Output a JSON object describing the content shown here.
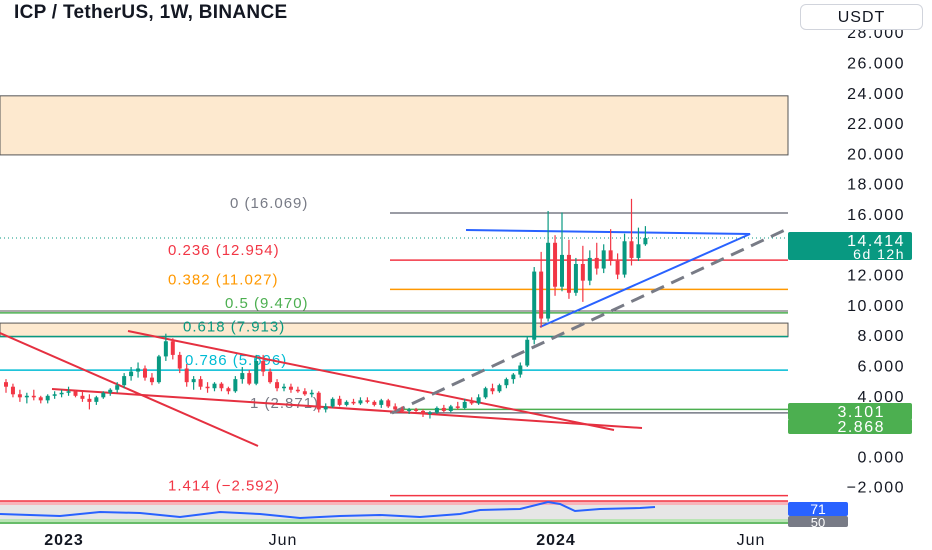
{
  "header": {
    "title": "ICP / TetherUS, 1W, BINANCE",
    "currency": "USDT"
  },
  "price_axis": {
    "ticks": [
      "28.000",
      "26.000",
      "24.000",
      "22.000",
      "20.000",
      "18.000",
      "16.000",
      "12.000",
      "10.000",
      "8.000",
      "6.000",
      "4.000",
      "0.000",
      "−2.000"
    ],
    "tick_values": [
      28,
      26,
      24,
      22,
      20,
      18,
      16,
      12,
      10,
      8,
      6,
      4,
      0,
      -2
    ]
  },
  "time_axis": {
    "labels": [
      "2023",
      "Jun",
      "2024",
      "Jun"
    ],
    "bold": [
      true,
      false,
      true,
      false
    ]
  },
  "badges": {
    "last_price": "14.414",
    "countdown": "6d 12h",
    "level_a": "3.101",
    "level_b": "2.868",
    "rsi_value": "71",
    "rsi_ref": "50"
  },
  "fib_levels": [
    {
      "label": "0 (16.069)",
      "price": 16.069,
      "color": "#787b86"
    },
    {
      "label": "0.236 (12.954)",
      "price": 12.954,
      "color": "#f23645"
    },
    {
      "label": "0.382 (11.027)",
      "price": 11.027,
      "color": "#ff9800"
    },
    {
      "label": "0.5 (9.470)",
      "price": 9.47,
      "color": "#4caf50"
    },
    {
      "label": "0.618 (7.913)",
      "price": 7.913,
      "color": "#089981"
    },
    {
      "label": "0.786 (5.696)",
      "price": 5.696,
      "color": "#00bcd4"
    },
    {
      "label": "1 (2.871)",
      "price": 2.871,
      "color": "#787b86"
    },
    {
      "label": "1.414 (−2.592)",
      "price": -2.592,
      "color": "#f23645"
    }
  ],
  "zones": [
    {
      "from": 19.9,
      "to": 23.8,
      "color": "#fde9cf"
    },
    {
      "from": 7.9,
      "to": 8.8,
      "color": "#fde9cf"
    }
  ],
  "colors": {
    "bull": "#089981",
    "bear": "#f23645",
    "trendline": "#e53040",
    "triangle": "#2962ff",
    "badge_green": "#4caf50",
    "badge_teal": "#089981",
    "badge_blue": "#2962ff",
    "badge_gray": "#787b86"
  },
  "chart_data": {
    "type": "candlestick",
    "symbol": "ICP / TetherUS",
    "interval": "1W",
    "exchange": "BINANCE",
    "x_labels": [
      "2023",
      "Jun",
      "2024",
      "Jun"
    ],
    "y_range": [
      -2.6,
      28.5
    ],
    "last_price": 14.414,
    "candles": [
      [
        4.9,
        5.1,
        4.2,
        4.6
      ],
      [
        4.6,
        4.8,
        3.9,
        4.1
      ],
      [
        4.1,
        4.4,
        3.6,
        3.9
      ],
      [
        3.9,
        4.2,
        3.5,
        4.0
      ],
      [
        4.0,
        4.4,
        3.7,
        3.9
      ],
      [
        3.9,
        4.0,
        3.5,
        3.7
      ],
      [
        3.7,
        4.1,
        3.5,
        4.0
      ],
      [
        4.0,
        4.3,
        3.8,
        4.1
      ],
      [
        4.1,
        4.4,
        3.9,
        4.2
      ],
      [
        4.2,
        4.6,
        4.0,
        4.3
      ],
      [
        4.3,
        4.4,
        3.9,
        4.0
      ],
      [
        4.0,
        4.3,
        3.6,
        3.8
      ],
      [
        3.8,
        4.1,
        3.1,
        3.6
      ],
      [
        3.6,
        4.0,
        3.4,
        3.9
      ],
      [
        3.9,
        4.3,
        3.8,
        4.2
      ],
      [
        4.2,
        4.5,
        4.0,
        4.4
      ],
      [
        4.4,
        4.9,
        4.2,
        4.7
      ],
      [
        4.7,
        5.5,
        4.5,
        5.3
      ],
      [
        5.3,
        5.9,
        5.0,
        5.6
      ],
      [
        5.6,
        6.2,
        5.2,
        5.8
      ],
      [
        5.8,
        6.0,
        5.0,
        5.2
      ],
      [
        5.2,
        5.5,
        4.7,
        4.9
      ],
      [
        4.9,
        6.7,
        4.8,
        6.6
      ],
      [
        6.6,
        8.1,
        6.3,
        7.6
      ],
      [
        7.6,
        7.8,
        6.4,
        6.7
      ],
      [
        6.7,
        6.9,
        5.5,
        5.8
      ],
      [
        5.8,
        6.1,
        4.6,
        4.9
      ],
      [
        4.9,
        5.3,
        4.4,
        5.1
      ],
      [
        5.1,
        5.3,
        4.4,
        4.6
      ],
      [
        4.6,
        4.9,
        4.2,
        4.5
      ],
      [
        4.5,
        4.9,
        4.3,
        4.8
      ],
      [
        4.8,
        4.9,
        4.3,
        4.5
      ],
      [
        4.5,
        4.6,
        4.1,
        4.3
      ],
      [
        4.3,
        5.3,
        4.2,
        5.1
      ],
      [
        5.1,
        5.9,
        4.8,
        5.5
      ],
      [
        5.5,
        5.7,
        4.7,
        4.8
      ],
      [
        4.8,
        6.7,
        4.7,
        6.3
      ],
      [
        6.3,
        6.7,
        5.3,
        5.6
      ],
      [
        5.6,
        5.8,
        4.8,
        4.9
      ],
      [
        4.9,
        5.1,
        4.3,
        4.5
      ],
      [
        4.5,
        4.8,
        4.3,
        4.6
      ],
      [
        4.6,
        4.8,
        4.2,
        4.4
      ],
      [
        4.4,
        4.6,
        4.2,
        4.3
      ],
      [
        4.3,
        4.5,
        4.0,
        4.1
      ],
      [
        4.1,
        4.4,
        3.9,
        4.2
      ],
      [
        4.2,
        4.3,
        2.9,
        3.1
      ],
      [
        3.1,
        3.5,
        2.9,
        3.3
      ],
      [
        3.3,
        3.9,
        3.2,
        3.8
      ],
      [
        3.8,
        4.0,
        3.3,
        3.4
      ],
      [
        3.4,
        3.7,
        3.3,
        3.6
      ],
      [
        3.6,
        3.8,
        3.4,
        3.5
      ],
      [
        3.5,
        3.9,
        3.4,
        3.7
      ],
      [
        3.7,
        3.9,
        3.5,
        3.6
      ],
      [
        3.6,
        3.7,
        3.3,
        3.4
      ],
      [
        3.4,
        3.8,
        3.2,
        3.7
      ],
      [
        3.7,
        3.8,
        3.2,
        3.3
      ],
      [
        3.3,
        3.5,
        3.0,
        3.1
      ],
      [
        3.1,
        3.3,
        2.9,
        3.0
      ],
      [
        3.0,
        3.2,
        2.8,
        3.1
      ],
      [
        3.1,
        3.2,
        2.9,
        3.0
      ],
      [
        3.0,
        3.1,
        2.6,
        2.8
      ],
      [
        2.8,
        3.0,
        2.5,
        2.9
      ],
      [
        2.9,
        3.3,
        2.8,
        3.2
      ],
      [
        3.2,
        3.4,
        2.9,
        3.0
      ],
      [
        3.0,
        3.4,
        2.9,
        3.3
      ],
      [
        3.3,
        3.6,
        3.1,
        3.2
      ],
      [
        3.2,
        3.8,
        3.1,
        3.6
      ],
      [
        3.6,
        3.9,
        3.4,
        3.5
      ],
      [
        3.5,
        4.1,
        3.4,
        3.9
      ],
      [
        3.9,
        4.6,
        3.8,
        4.5
      ],
      [
        4.5,
        4.8,
        4.1,
        4.3
      ],
      [
        4.3,
        4.8,
        4.2,
        4.7
      ],
      [
        4.7,
        5.2,
        4.5,
        5.1
      ],
      [
        5.1,
        5.5,
        4.8,
        5.4
      ],
      [
        5.4,
        6.2,
        5.2,
        6.0
      ],
      [
        6.0,
        7.9,
        5.9,
        7.7
      ],
      [
        7.7,
        12.5,
        7.4,
        12.2
      ],
      [
        12.2,
        13.5,
        8.5,
        9.1
      ],
      [
        9.1,
        16.2,
        8.9,
        14.1
      ],
      [
        14.1,
        14.6,
        10.6,
        11.2
      ],
      [
        11.2,
        16.1,
        10.9,
        13.3
      ],
      [
        13.3,
        14.3,
        10.4,
        10.8
      ],
      [
        10.8,
        13.1,
        10.6,
        12.7
      ],
      [
        12.7,
        13.9,
        10.2,
        11.6
      ],
      [
        11.6,
        13.6,
        11.3,
        13.1
      ],
      [
        13.1,
        14.1,
        12.0,
        12.4
      ],
      [
        12.4,
        14.0,
        12.1,
        13.6
      ],
      [
        13.6,
        15.0,
        12.6,
        12.9
      ],
      [
        12.9,
        13.4,
        11.7,
        12.0
      ],
      [
        12.0,
        14.7,
        11.8,
        14.2
      ],
      [
        14.2,
        17.0,
        12.6,
        13.1
      ],
      [
        13.1,
        15.1,
        12.9,
        14.0
      ],
      [
        14.0,
        15.2,
        13.9,
        14.414
      ]
    ]
  }
}
